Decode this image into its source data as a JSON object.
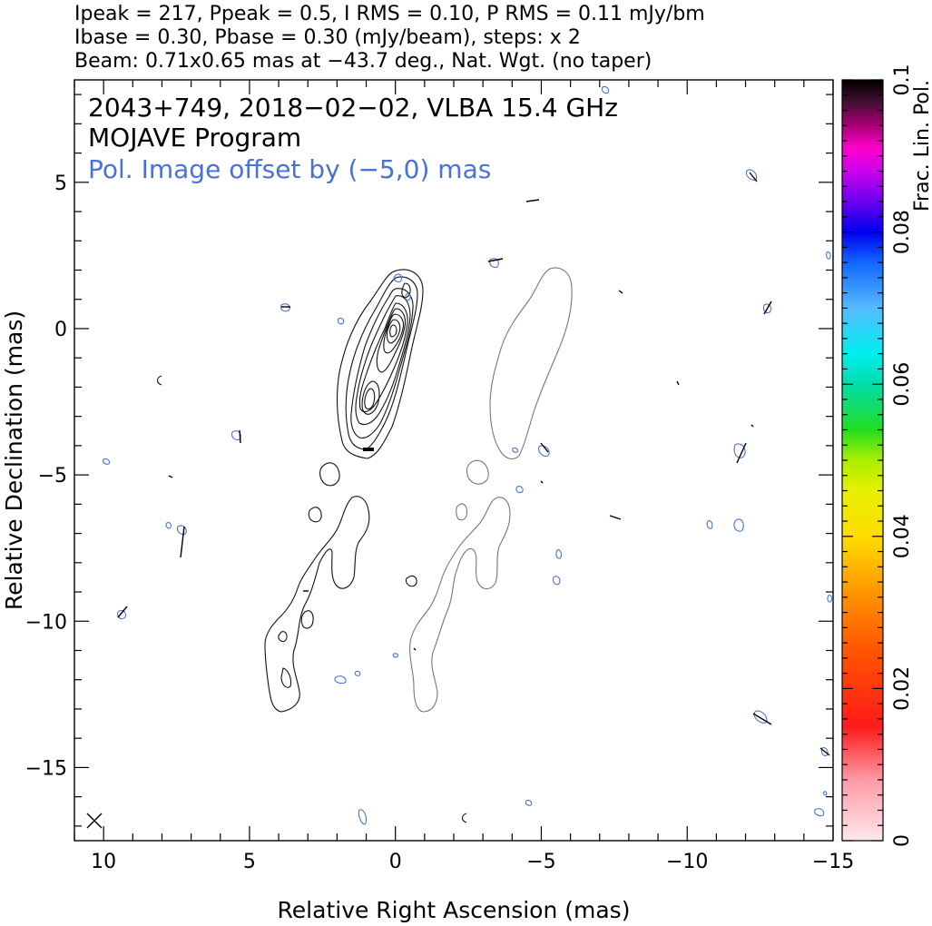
{
  "header": {
    "line1": "Ipeak = 217, Ppeak = 0.5, I RMS = 0.10, P RMS = 0.11 mJy/bm",
    "line2": "Ibase = 0.30, Pbase = 0.30 (mJy/beam), steps: x 2",
    "line3": "Beam: 0.71x0.65 mas at −43.7 deg., Nat. Wgt. (no taper)"
  },
  "annotations": {
    "source": "2043+749, 2018−02−02, VLBA 15.4 GHz",
    "program": "MOJAVE Program",
    "offset": "Pol. Image offset by (−5,0) mas"
  },
  "chart_data": {
    "type": "contour",
    "xlabel": "Relative Right Ascension (mas)",
    "ylabel": "Relative Declination (mas)",
    "xlim": [
      11,
      -15
    ],
    "ylim": [
      -17.5,
      8.5
    ],
    "x_ticks": [
      10,
      5,
      0,
      -5,
      -10,
      -15
    ],
    "x_tick_labels": [
      "10",
      "5",
      "0",
      "−5",
      "−10",
      "−15"
    ],
    "y_ticks": [
      5,
      0,
      -5,
      -10,
      -15
    ],
    "y_tick_labels": [
      "5",
      "0",
      "−5",
      "−10",
      "−15"
    ],
    "colorbar": {
      "label": "Frac. Lin. Pol.",
      "range": [
        0,
        0.1
      ],
      "ticks": [
        0,
        0.02,
        0.04,
        0.06,
        0.08,
        0.1
      ],
      "tick_labels": [
        "0",
        "0.02",
        "0.04",
        "0.06",
        "0.08",
        "0.1"
      ]
    },
    "peak_position": [
      0,
      0
    ],
    "core_contour_levels": 9,
    "contour_colors": {
      "stokes_i": "#111111",
      "polarization": "#777777",
      "frac_pol": "#4a72d6"
    }
  }
}
